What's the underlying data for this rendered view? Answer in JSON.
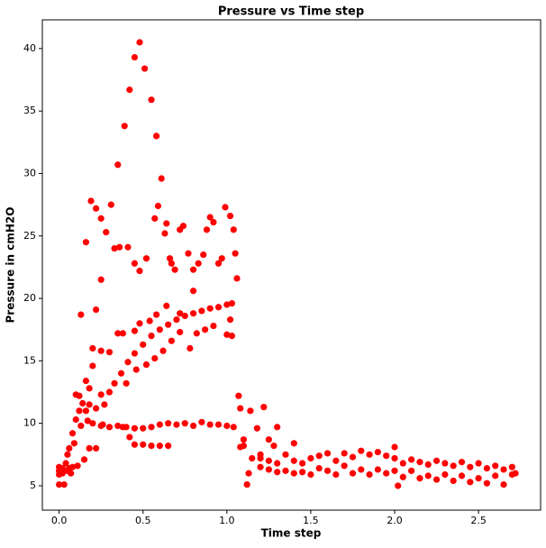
{
  "chart_data": {
    "type": "scatter",
    "title": "Pressure vs Time step",
    "x_label": "Time step",
    "y_label": "Pressure in cmH2O",
    "color": "#ff0000",
    "xlim": [
      -0.1,
      2.87
    ],
    "ylim": [
      3.05,
      42.3
    ],
    "xticks": [
      {
        "value": 0,
        "label": "0.0"
      },
      0.5,
      {
        "value": 1,
        "label": "1.0"
      },
      1.5,
      {
        "value": 2,
        "label": "2.0"
      },
      2.5
    ],
    "yticks": [
      5,
      10,
      15,
      20,
      25,
      30,
      35,
      40
    ],
    "x": [
      0.13,
      0.16,
      0.19,
      0.22,
      0.25,
      0.28,
      0.31,
      0.35,
      0.39,
      0.42,
      0.45,
      0.48,
      0.51,
      0.55,
      0.58,
      0.61,
      0.64,
      0.67,
      0.33,
      0.36,
      0.41,
      0.45,
      0.48,
      0.52,
      0.57,
      0.59,
      0.63,
      0.66,
      0.69,
      0.72,
      0.74,
      0.77,
      0.8,
      0.83,
      0.86,
      0.88,
      0.9,
      0.92,
      0.95,
      0.97,
      0.99,
      1.02,
      1.04,
      1.05,
      1.06,
      0.25,
      0.3,
      0.33,
      0.37,
      0.41,
      0.45,
      0.5,
      0.55,
      0.6,
      0.65,
      0.7,
      0.75,
      0.8,
      0.85,
      0.9,
      0.95,
      1.0,
      1.03,
      0.4,
      0.46,
      0.52,
      0.57,
      0.62,
      0.67,
      0.72,
      0.78,
      0.82,
      0.87,
      0.92,
      1.0,
      1.03,
      0.2,
      0.25,
      0.3,
      0.35,
      0.38,
      0.45,
      0.48,
      0.54,
      0.58,
      0.64,
      0.72,
      0.8,
      1.02,
      0.22,
      0.25,
      0.12,
      0.16,
      0.18,
      0.2,
      0.2,
      0.25,
      0.3,
      0.35,
      0.4,
      0.45,
      0.5,
      0.55,
      0.6,
      0.65,
      0.7,
      0.75,
      0.8,
      0.85,
      0.9,
      0.95,
      1.0,
      1.04,
      0.45,
      0.5,
      0.55,
      0.6,
      0.65,
      0.42,
      0.38,
      0.02,
      0.04,
      0.06,
      0.08,
      0.1,
      0.12,
      0.14,
      0.16,
      0.18,
      0.22,
      0.27,
      0.1,
      0.05,
      0.09,
      0.13,
      0.17,
      0.22,
      0.26,
      0.08,
      0.11,
      0.15,
      0.18,
      0,
      0,
      0,
      0,
      0.03,
      0.02,
      0.05,
      0.06,
      0.07,
      1.07,
      1.08,
      1.1,
      1.12,
      1.13,
      1.14,
      1.18,
      1.22,
      1.08,
      1.1,
      1.15,
      1.2,
      1.25,
      1.3,
      1.28,
      1.2,
      1.2,
      1.25,
      1.25,
      1.3,
      1.3,
      1.35,
      1.35,
      1.4,
      1.4,
      1.4,
      1.45,
      1.45,
      1.5,
      1.5,
      1.55,
      1.55,
      1.6,
      1.6,
      1.65,
      1.65,
      1.7,
      1.7,
      1.75,
      1.75,
      1.8,
      1.8,
      1.85,
      1.85,
      1.9,
      1.9,
      1.95,
      1.95,
      2.0,
      2.0,
      2.0,
      2.02,
      2.05,
      2.05,
      2.1,
      2.1,
      2.15,
      2.15,
      2.2,
      2.2,
      2.25,
      2.25,
      2.3,
      2.3,
      2.35,
      2.35,
      2.4,
      2.4,
      2.45,
      2.45,
      2.5,
      2.5,
      2.55,
      2.55,
      2.6,
      2.6,
      2.65,
      2.65,
      2.7,
      2.7,
      2.72
    ],
    "values": [
      18.7,
      24.5,
      27.8,
      27.2,
      26.4,
      25.3,
      27.5,
      30.7,
      33.8,
      36.7,
      39.3,
      40.5,
      38.4,
      35.9,
      33.0,
      29.6,
      26.0,
      22.8,
      24.0,
      24.1,
      24.1,
      22.8,
      22.2,
      23.2,
      26.4,
      27.4,
      25.2,
      23.2,
      22.3,
      25.5,
      25.8,
      23.6,
      22.3,
      22.8,
      23.5,
      25.5,
      26.5,
      26.1,
      22.8,
      23.2,
      27.3,
      26.6,
      25.5,
      23.6,
      21.6,
      12.3,
      12.5,
      13.2,
      14.0,
      14.9,
      15.6,
      16.3,
      17.0,
      17.5,
      17.9,
      18.3,
      18.6,
      18.8,
      19.0,
      19.2,
      19.3,
      19.5,
      19.6,
      13.2,
      14.3,
      14.7,
      15.2,
      15.8,
      16.6,
      17.3,
      16.0,
      17.2,
      17.5,
      17.8,
      17.1,
      17.0,
      16.0,
      15.8,
      15.7,
      17.2,
      17.2,
      17.4,
      18.0,
      18.2,
      18.7,
      19.4,
      18.8,
      20.6,
      18.3,
      19.1,
      21.5,
      12.2,
      13.4,
      12.8,
      14.6,
      10.0,
      9.8,
      9.7,
      9.8,
      9.7,
      9.6,
      9.6,
      9.7,
      9.9,
      10.0,
      9.9,
      10.0,
      9.8,
      10.1,
      9.9,
      9.9,
      9.8,
      9.7,
      8.3,
      8.3,
      8.2,
      8.2,
      8.2,
      8.9,
      9.7,
      6.0,
      6.8,
      8.0,
      9.2,
      10.3,
      11.0,
      11.6,
      11.0,
      11.5,
      11.2,
      11.5,
      12.3,
      7.5,
      8.4,
      9.8,
      10.2,
      8.0,
      9.9,
      6.5,
      6.6,
      7.1,
      8.0,
      5.1,
      5.9,
      6.2,
      6.5,
      5.1,
      6.4,
      6.2,
      6.4,
      6.0,
      12.2,
      11.2,
      8.7,
      5.1,
      6.0,
      11.0,
      9.6,
      11.3,
      8.1,
      8.2,
      7.2,
      7.5,
      8.7,
      9.7,
      8.2,
      7.2,
      6.5,
      7.0,
      6.3,
      6.8,
      6.1,
      7.5,
      6.2,
      7.0,
      6.0,
      8.4,
      6.8,
      6.1,
      7.2,
      5.9,
      7.4,
      6.4,
      7.6,
      6.2,
      7.0,
      5.9,
      7.6,
      6.6,
      7.3,
      6.0,
      7.8,
      6.3,
      7.5,
      5.9,
      7.7,
      6.3,
      7.4,
      6.0,
      7.2,
      6.2,
      8.1,
      5.0,
      6.8,
      5.7,
      7.1,
      6.2,
      6.9,
      5.6,
      6.7,
      5.8,
      7.0,
      5.5,
      6.8,
      5.9,
      6.6,
      5.4,
      6.9,
      5.8,
      6.5,
      5.3,
      6.8,
      5.6,
      6.4,
      5.2,
      6.6,
      5.8,
      6.3,
      5.1,
      6.5,
      5.9,
      6.0
    ]
  }
}
